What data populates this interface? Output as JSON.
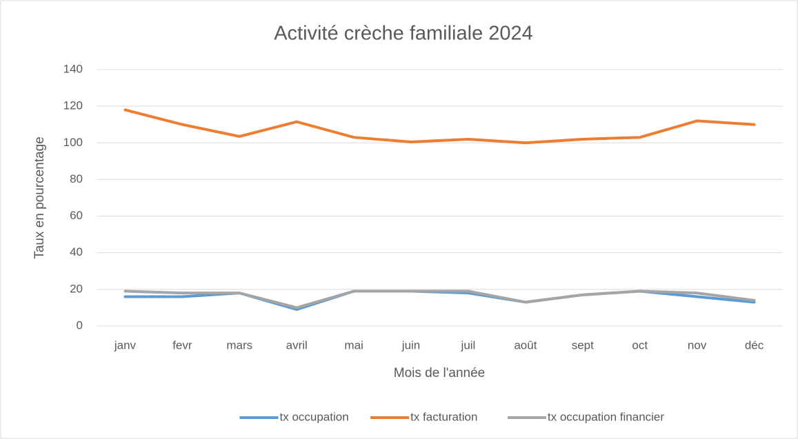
{
  "chart_data": {
    "type": "line",
    "title": "Activité crèche familiale 2024",
    "x_label": "Mois de l'année",
    "y_label": "Taux en pourcentage",
    "categories": [
      "janv",
      "fevr",
      "mars",
      "avril",
      "mai",
      "juin",
      "juil",
      "août",
      "sept",
      "oct",
      "nov",
      "déc"
    ],
    "series": [
      {
        "name": "tx occupation",
        "color": "#5b9bd5",
        "values": [
          16,
          16,
          18,
          9,
          19,
          19,
          18,
          13,
          17,
          19,
          16,
          13
        ]
      },
      {
        "name": "tx facturation",
        "color": "#ed7d31",
        "values": [
          118,
          110,
          103.5,
          111.5,
          103,
          100.5,
          102,
          100,
          102,
          103,
          112,
          110
        ]
      },
      {
        "name": "tx occupation financier",
        "color": "#a5a5a5",
        "values": [
          19,
          18,
          18,
          10,
          19,
          19,
          19,
          13,
          17,
          19,
          18,
          14
        ]
      }
    ],
    "ylim": [
      0,
      140
    ],
    "yticks": [
      0,
      20,
      40,
      60,
      80,
      100,
      120,
      140
    ],
    "grid": true,
    "legend": "bottom"
  }
}
